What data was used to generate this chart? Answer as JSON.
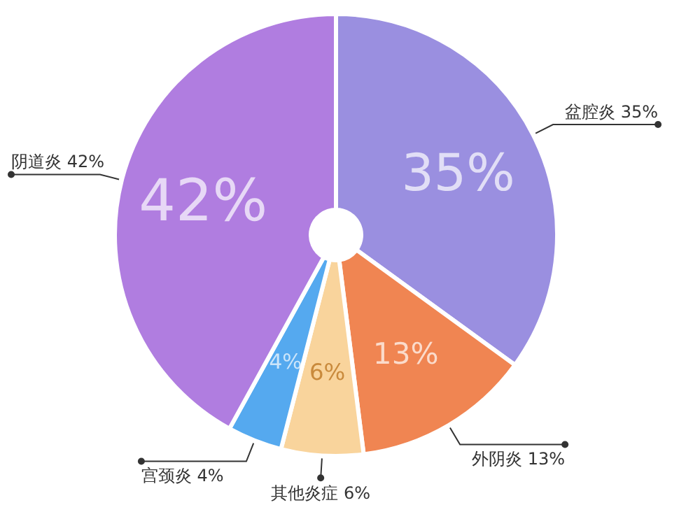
{
  "chart_data": {
    "type": "pie",
    "categories": [
      "盆腔炎 35%",
      "外阴炎 13%",
      "其他炎症 6%",
      "宫颈炎 4%",
      "阴道炎 42%"
    ],
    "values": [
      35,
      13,
      6,
      4,
      42
    ],
    "value_labels": [
      "35%",
      "13%",
      "6%",
      "4%",
      "42%"
    ],
    "colors": [
      "#9a8fe0",
      "#f08552",
      "#f9d49c",
      "#55a9ef",
      "#b07de0"
    ]
  }
}
